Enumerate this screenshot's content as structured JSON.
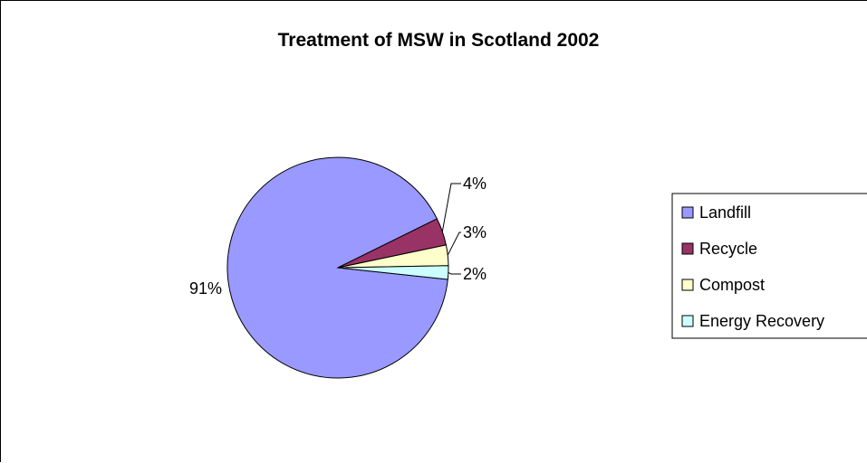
{
  "chart_data": {
    "type": "pie",
    "title": "Treatment of MSW in Scotland 2002",
    "categories": [
      "Landfill",
      "Recycle",
      "Compost",
      "Energy Recovery"
    ],
    "values": [
      91,
      4,
      3,
      2
    ],
    "labels": [
      "91%",
      "4%",
      "3%",
      "2%"
    ],
    "colors": [
      "#9999FF",
      "#993366",
      "#FFFFCC",
      "#CCFFFF"
    ],
    "legend_position": "right"
  }
}
